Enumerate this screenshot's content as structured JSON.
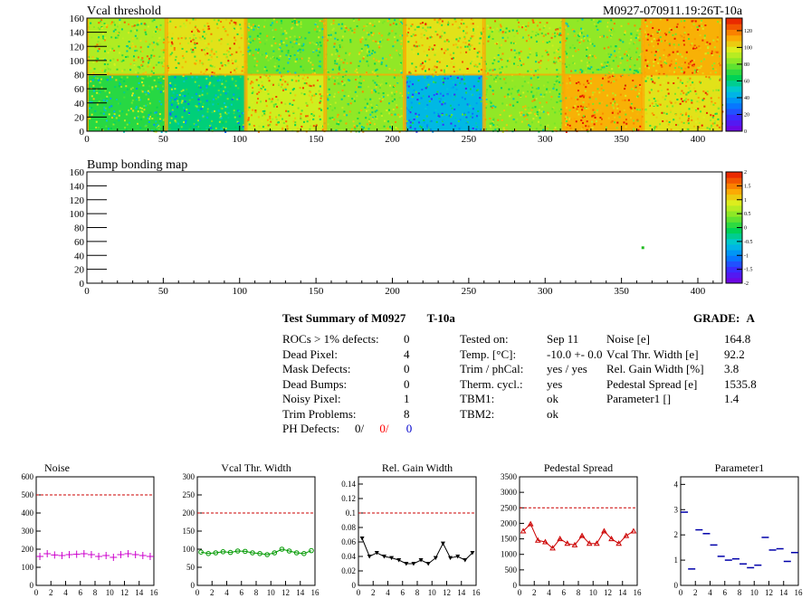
{
  "header": {
    "title": "M0927-070911.19:26T-10a"
  },
  "maps": [
    {
      "id": "vcal",
      "title": "Vcal threshold",
      "x_ticks": [
        "0",
        "50",
        "100",
        "150",
        "200",
        "250",
        "300",
        "350",
        "400"
      ],
      "y_ticks": [
        "0",
        "20",
        "40",
        "60",
        "80",
        "100",
        "120",
        "140",
        "160"
      ],
      "x_range": [
        0,
        416
      ],
      "y_range": [
        0,
        160
      ],
      "palette_ticks": [
        "0",
        "20",
        "40",
        "60",
        "80",
        "100",
        "120"
      ],
      "palette_range": [
        0,
        135
      ],
      "blocks": [
        [
          70,
          60,
          95,
          85,
          45,
          85,
          110,
          100
        ],
        [
          90,
          100,
          80,
          85,
          100,
          90,
          85,
          110
        ]
      ]
    },
    {
      "id": "bump",
      "title": "Bump bonding map",
      "x_ticks": [
        "0",
        "50",
        "100",
        "150",
        "200",
        "250",
        "300",
        "350",
        "400"
      ],
      "y_ticks": [
        "0",
        "20",
        "40",
        "60",
        "80",
        "100",
        "120",
        "140",
        "160"
      ],
      "x_range": [
        0,
        416
      ],
      "y_range": [
        0,
        160
      ],
      "palette_ticks": [
        "-2",
        "-1.5",
        "-1",
        "-0.5",
        "0",
        "0.5",
        "1",
        "1.5",
        "2"
      ],
      "palette_range": [
        -2,
        2
      ],
      "points": [
        {
          "x": 364,
          "y": 51
        }
      ]
    }
  ],
  "summary": {
    "title": "Test Summary of M0927",
    "temp_tag": "T-10a",
    "grade_label": "GRADE:",
    "grade_value": "A",
    "defects": [
      {
        "label": "ROCs > 1% defects:",
        "value": "0"
      },
      {
        "label": "Dead Pixel:",
        "value": "4"
      },
      {
        "label": "Mask Defects:",
        "value": "0"
      },
      {
        "label": "Dead Bumps:",
        "value": "0"
      },
      {
        "label": "Noisy Pixel:",
        "value": "1"
      },
      {
        "label": "Trim Problems:",
        "value": "8"
      }
    ],
    "ph_defects": {
      "label": "PH Defects:",
      "v1": "0/",
      "v2": "0/",
      "v3": "0"
    },
    "conditions": [
      {
        "label": "Tested on:",
        "value": "Sep 11"
      },
      {
        "label": "Temp. [°C]:",
        "value": "-10.0 +- 0.0"
      },
      {
        "label": "Trim / phCal:",
        "value": "yes / yes"
      },
      {
        "label": "Therm. cycl.:",
        "value": "yes"
      },
      {
        "label": "TBM1:",
        "value": "ok"
      },
      {
        "label": "TBM2:",
        "value": "ok"
      }
    ],
    "results": [
      {
        "label": "Noise [e]",
        "value": "164.8"
      },
      {
        "label": "Vcal Thr. Width [e]",
        "value": "92.2"
      },
      {
        "label": "Rel. Gain Width [%]",
        "value": "3.8"
      },
      {
        "label": "Pedestal Spread [e]",
        "value": "1535.8"
      },
      {
        "label": "Parameter1 []",
        "value": "1.4"
      }
    ]
  },
  "chart_data": [
    {
      "type": "line",
      "title": "Noise",
      "x": [
        0,
        1,
        2,
        3,
        4,
        5,
        6,
        7,
        8,
        9,
        10,
        11,
        12,
        13,
        14,
        15
      ],
      "values": [
        160,
        175,
        168,
        165,
        170,
        172,
        175,
        170,
        160,
        165,
        155,
        170,
        175,
        170,
        165,
        160
      ],
      "marker": "cross",
      "color": "#cc00cc",
      "line": false,
      "ylim": [
        0,
        600
      ],
      "yticks": [
        "0",
        "100",
        "200",
        "300",
        "400",
        "500",
        "600"
      ],
      "xticks": [
        "0",
        "2",
        "4",
        "6",
        "8",
        "10",
        "12",
        "14",
        "16"
      ],
      "reference": 500
    },
    {
      "type": "line",
      "title": "Vcal Thr. Width",
      "x": [
        0,
        1,
        2,
        3,
        4,
        5,
        6,
        7,
        8,
        9,
        10,
        11,
        12,
        13,
        14,
        15
      ],
      "values": [
        92,
        88,
        90,
        93,
        91,
        95,
        94,
        90,
        88,
        85,
        90,
        100,
        95,
        90,
        88,
        96
      ],
      "marker": "circle",
      "color": "#009900",
      "line": true,
      "ylim": [
        0,
        300
      ],
      "yticks": [
        "0",
        "50",
        "100",
        "150",
        "200",
        "250",
        "300"
      ],
      "xticks": [
        "0",
        "2",
        "4",
        "6",
        "8",
        "10",
        "12",
        "14",
        "16"
      ],
      "reference": 200
    },
    {
      "type": "line",
      "title": "Rel. Gain Width",
      "x": [
        0,
        1,
        2,
        3,
        4,
        5,
        6,
        7,
        8,
        9,
        10,
        11,
        12,
        13,
        14,
        15
      ],
      "values": [
        0.065,
        0.04,
        0.045,
        0.04,
        0.038,
        0.035,
        0.03,
        0.03,
        0.035,
        0.03,
        0.038,
        0.058,
        0.038,
        0.04,
        0.035,
        0.045
      ],
      "marker": "triangle-down",
      "color": "#000000",
      "line": true,
      "ylim": [
        0,
        0.15
      ],
      "yticks": [
        "0",
        "0.02",
        "0.04",
        "0.06",
        "0.08",
        "0.1",
        "0.12",
        "0.14"
      ],
      "xticks": [
        "0",
        "2",
        "4",
        "6",
        "8",
        "10",
        "12",
        "14",
        "16"
      ],
      "reference": 0.1
    },
    {
      "type": "line",
      "title": "Pedestal Spread",
      "x": [
        0,
        1,
        2,
        3,
        4,
        5,
        6,
        7,
        8,
        9,
        10,
        11,
        12,
        13,
        14,
        15
      ],
      "values": [
        1750,
        1980,
        1450,
        1400,
        1200,
        1500,
        1350,
        1300,
        1600,
        1350,
        1350,
        1750,
        1500,
        1350,
        1600,
        1750
      ],
      "marker": "triangle-up",
      "color": "#cc0000",
      "line": true,
      "ylim": [
        0,
        3500
      ],
      "yticks": [
        "0",
        "500",
        "1000",
        "1500",
        "2000",
        "2500",
        "3000",
        "3500"
      ],
      "xticks": [
        "0",
        "2",
        "4",
        "6",
        "8",
        "10",
        "12",
        "14",
        "16"
      ],
      "reference": 2500
    },
    {
      "type": "scatter",
      "title": "Parameter1",
      "x": [
        0,
        1,
        2,
        3,
        4,
        5,
        6,
        7,
        8,
        9,
        10,
        11,
        12,
        13,
        14,
        15
      ],
      "values": [
        2.9,
        0.65,
        2.2,
        2.05,
        1.6,
        1.15,
        1.0,
        1.05,
        0.85,
        0.7,
        0.8,
        1.9,
        1.4,
        1.45,
        0.95,
        1.3
      ],
      "marker": "dash",
      "color": "#0000aa",
      "line": false,
      "ylim": [
        0,
        4.3
      ],
      "yticks": [
        "0",
        "1",
        "2",
        "3",
        "4"
      ],
      "xticks": [
        "0",
        "2",
        "4",
        "6",
        "8",
        "10",
        "12",
        "14",
        "16"
      ]
    }
  ]
}
